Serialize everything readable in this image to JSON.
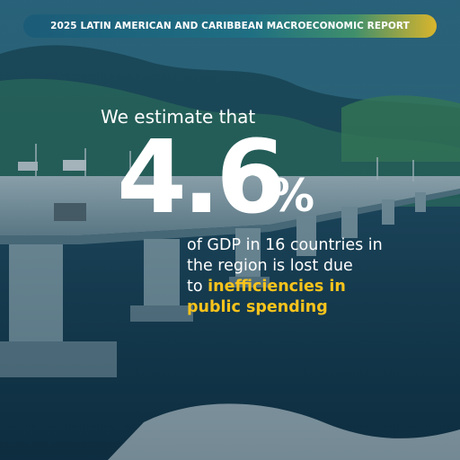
{
  "banner": {
    "text": "2025 LATIN AMERICAN AND CARIBBEAN MACROECONOMIC REPORT"
  },
  "headline": {
    "lead": "We estimate that",
    "value": "4.6",
    "unit": "%",
    "line1": "of GDP in 16 countries in",
    "line2": "the region is lost due",
    "line3_plain": "to ",
    "line3_highlight": "inefficiencies in",
    "line4_highlight": "public spending"
  },
  "colors": {
    "background": "#0e3145",
    "highlight": "#f7c31c",
    "banner_start": "#1b5c78",
    "banner_end": "#d9b52c",
    "text": "#ffffff"
  }
}
